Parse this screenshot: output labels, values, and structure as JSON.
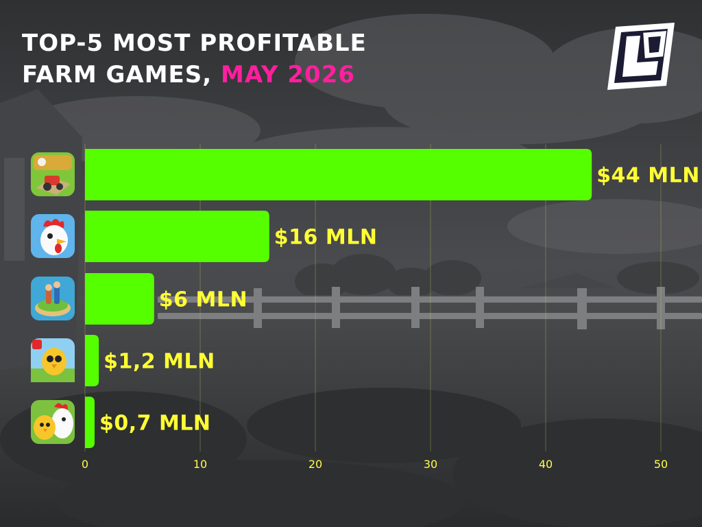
{
  "title": {
    "line1": "TOP-5 MOST PROFITABLE",
    "line2_prefix": "FARM GAMES,",
    "line2_accent": "MAY 2026"
  },
  "colors": {
    "bar": "#55ff00",
    "value_label": "#ffff33",
    "tick_label": "#ffff4a",
    "title": "#ffffff",
    "title_accent": "#ff1f9e",
    "background": "#3a3b3d"
  },
  "icons": [
    "farm-tractor-game-icon",
    "rooster-game-icon",
    "farm-island-game-icon",
    "chick-game-icon",
    "chick-and-rooster-game-icon"
  ],
  "chart_data": {
    "type": "bar",
    "orientation": "horizontal",
    "categories": [
      "",
      "",
      "",
      "",
      ""
    ],
    "values": [
      44,
      16,
      6,
      1.2,
      0.7
    ],
    "value_labels": [
      "$44 MLN",
      "$16 MLN",
      "$6 MLN",
      "$1,2 MLN",
      "$0,7 MLN"
    ],
    "x_ticks": [
      "0",
      "10",
      "20",
      "30",
      "40",
      "50"
    ],
    "xlim": [
      0,
      50
    ],
    "xlabel": "",
    "ylabel": "",
    "grid": true,
    "legend": "none"
  }
}
